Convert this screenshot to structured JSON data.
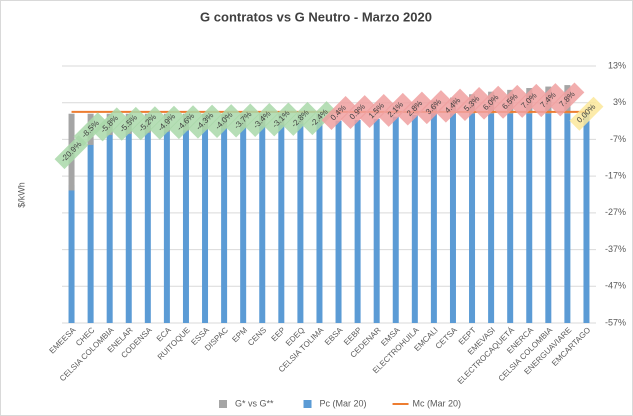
{
  "chart_data": {
    "type": "bar",
    "title": "G contratos vs G Neutro - Marzo 2020",
    "ylabel": "$/kWh",
    "categories": [
      "EMEESA",
      "CHEC",
      "CELSIA COLOMBIA",
      "ENELAR",
      "CODENSA",
      "ECA",
      "RUITOQUE",
      "ESSA",
      "DISPAC",
      "EPM",
      "CENS",
      "EEP",
      "EDEQ",
      "CELSIA TOLIMA",
      "EBSA",
      "EEBP",
      "CEDENAR",
      "EMSA",
      "ELECTROHUILA",
      "EMCALI",
      "CETSA",
      "EEPT",
      "EMEVASI",
      "ELECTROCAQUETÁ",
      "ENERCA",
      "CELSIA COLOMBIA",
      "ENERGUAVIARE",
      "EMCARTAGO"
    ],
    "series": [
      {
        "name": "G* vs G**",
        "type": "bar",
        "color": "#a5a5a5",
        "values": [
          -20.9,
          -8.5,
          -5.8,
          -5.5,
          -5.2,
          -4.9,
          -4.6,
          -4.3,
          -4.0,
          -3.7,
          -3.4,
          -3.1,
          -2.8,
          -2.4,
          0.4,
          0.9,
          1.5,
          2.1,
          2.8,
          3.6,
          4.4,
          5.3,
          6.0,
          6.5,
          7.0,
          7.4,
          7.8,
          0
        ],
        "value_labels": [
          "-20.9%",
          "-8.5%",
          "-5.8%",
          "-5.5%",
          "-5.2%",
          "-4.9%",
          "-4.6%",
          "-4.3%",
          "-4.0%",
          "-3.7%",
          "-3.4%",
          "-3.1%",
          "-2.8%",
          "-2.4%",
          "0.4%",
          "0.9%",
          "1.5%",
          "2.1%",
          "2.8%",
          "3.6%",
          "4.4%",
          "5.3%",
          "6.0%",
          "6.5%",
          "7.0%",
          "7.4%",
          "7.8%",
          "0.00%"
        ]
      },
      {
        "name": "Pc (Mar 20)",
        "type": "bar",
        "color": "#5b9bd5",
        "values": [
          -19.4,
          -7.2,
          -4.4,
          -4.2,
          -3.9,
          -3.6,
          -3.6,
          -3.3,
          -3.3,
          -3.1,
          -3.1,
          -2.8,
          -2.5,
          -2.2,
          -1.9,
          -1.7,
          -1.4,
          -0.8,
          -0.3,
          1.1,
          1.9,
          3.8,
          4.9,
          5.2,
          5.7,
          6.0,
          6.3,
          0.5
        ]
      },
      {
        "name": "Mc (Mar 20)",
        "type": "line",
        "color": "#ed7d31",
        "values": [
          0.5,
          0.5,
          0.5,
          0.5,
          0.5,
          0.5,
          0.5,
          0.5,
          0.5,
          0.5,
          0.5,
          0.5,
          0.5,
          0.5,
          0.5,
          0.5,
          0.5,
          0.5,
          0.5,
          0.5,
          0.5,
          0.5,
          0.5,
          0.5,
          0.5,
          0.5,
          0.5,
          0.5
        ]
      }
    ],
    "label_colors": {
      "negative": "#a9d8a9",
      "positive": "#f0a0a0",
      "zero": "#fbe89a"
    },
    "ylim": [
      -57,
      13
    ],
    "yticks": [
      {
        "value": 13,
        "label": "13%"
      },
      {
        "value": 3,
        "label": "3%"
      },
      {
        "value": -7,
        "label": "-7%"
      },
      {
        "value": -17,
        "label": "-17%"
      },
      {
        "value": -27,
        "label": "-27%"
      },
      {
        "value": -37,
        "label": "-37%"
      },
      {
        "value": -47,
        "label": "-47%"
      },
      {
        "value": -57,
        "label": "-57%"
      }
    ],
    "grid": true,
    "legend": "bottom"
  }
}
